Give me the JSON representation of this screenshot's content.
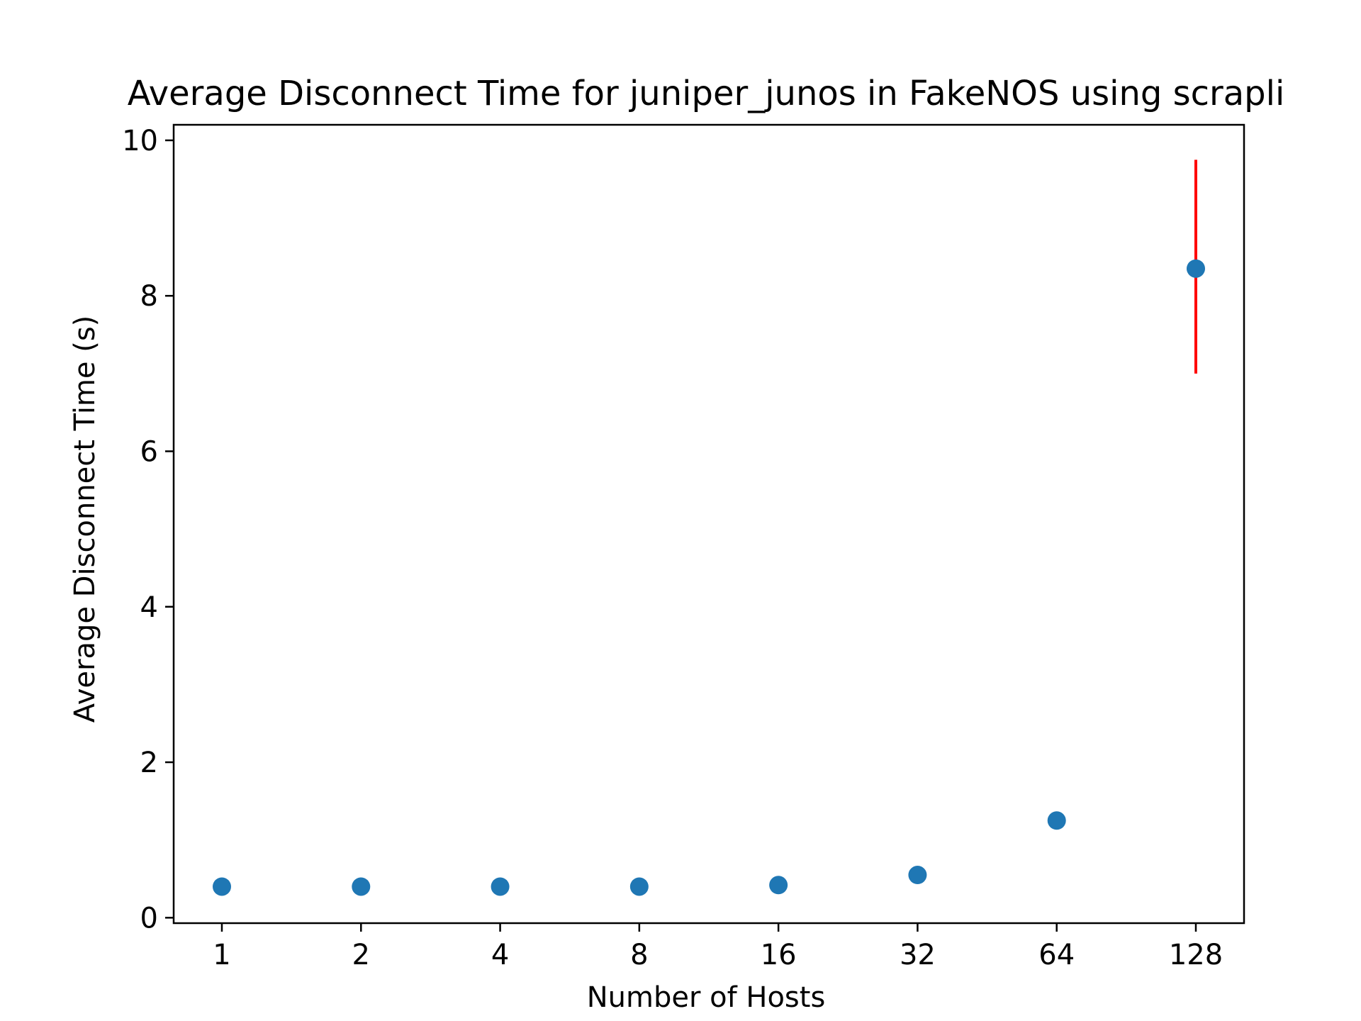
{
  "chart_data": {
    "type": "scatter",
    "title": "Average Disconnect Time for juniper_junos in FakeNOS using scrapli",
    "xlabel": "Number of Hosts",
    "ylabel": "Average Disconnect Time (s)",
    "x_scale": "log2",
    "categories": [
      "1",
      "2",
      "4",
      "8",
      "16",
      "32",
      "64",
      "128"
    ],
    "x": [
      1,
      2,
      4,
      8,
      16,
      32,
      64,
      128
    ],
    "y_ticks": [
      0,
      2,
      4,
      6,
      8,
      10
    ],
    "ylim": [
      -0.07,
      10.2
    ],
    "series": [
      {
        "values": [
          0.4,
          0.4,
          0.4,
          0.4,
          0.42,
          0.55,
          1.25,
          8.35
        ],
        "error_low": [
          0,
          0,
          0,
          0,
          0,
          0,
          0,
          1.35
        ],
        "error_high": [
          0,
          0,
          0,
          0,
          0,
          0,
          0,
          1.4
        ],
        "color": "#1f77b4",
        "error_color": "#ff0000"
      }
    ],
    "grid": false,
    "legend": "none"
  }
}
